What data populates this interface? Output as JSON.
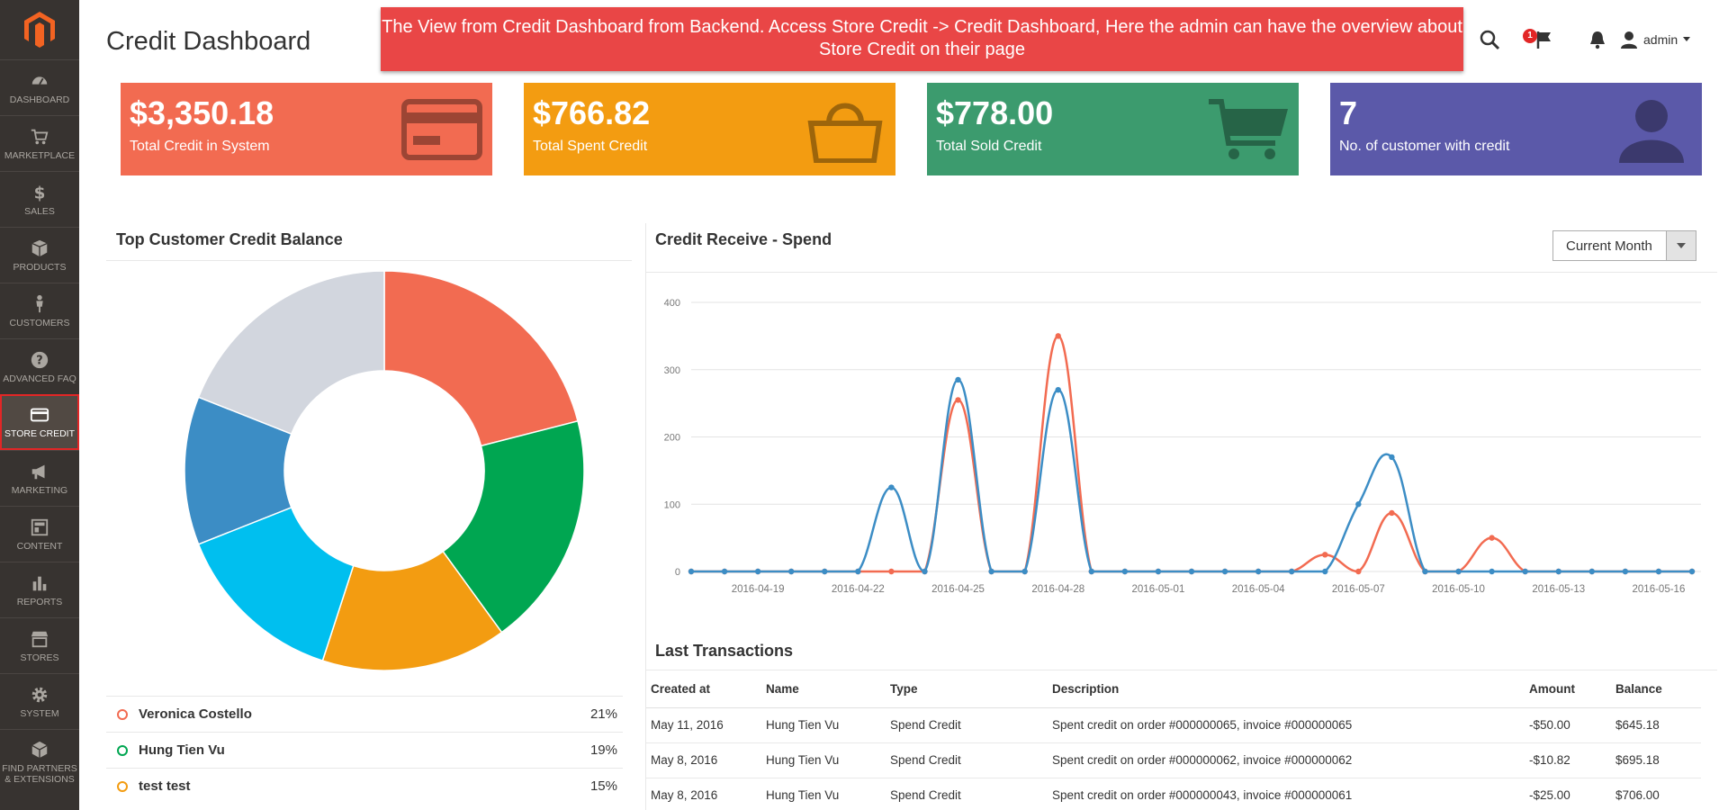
{
  "page": {
    "title": "Credit Dashboard"
  },
  "banner": {
    "text": "The View from Credit Dashboard from Backend. Access Store Credit -> Credit Dashboard, Here the admin can have the overview about Store Credit on their page"
  },
  "header": {
    "notification_count": "1",
    "user": "admin"
  },
  "sidebar": {
    "items": [
      {
        "label": "Dashboard",
        "icon": "dashboard-icon"
      },
      {
        "label": "Marketplace",
        "icon": "marketplace-icon"
      },
      {
        "label": "Sales",
        "icon": "dollar-icon"
      },
      {
        "label": "Products",
        "icon": "box-icon"
      },
      {
        "label": "Customers",
        "icon": "person-icon"
      },
      {
        "label": "Advanced FAQ",
        "icon": "question-icon"
      },
      {
        "label": "Store Credit",
        "icon": "credit-card-icon",
        "active": true
      },
      {
        "label": "Marketing",
        "icon": "megaphone-icon"
      },
      {
        "label": "Content",
        "icon": "layout-icon"
      },
      {
        "label": "Reports",
        "icon": "bar-chart-icon"
      },
      {
        "label": "Stores",
        "icon": "store-icon"
      },
      {
        "label": "System",
        "icon": "gear-icon"
      },
      {
        "label": "Find Partners & Extensions",
        "icon": "extensions-icon"
      }
    ]
  },
  "cards": [
    {
      "value": "$3,350.18",
      "label": "Total Credit in System",
      "color": "#f26b51",
      "icon": "credit-card-icon"
    },
    {
      "value": "$766.82",
      "label": "Total Spent Credit",
      "color": "#f39c11",
      "icon": "shopping-bag-icon"
    },
    {
      "value": "$778.00",
      "label": "Total Sold Credit",
      "color": "#3c9b6e",
      "icon": "shopping-cart-icon"
    },
    {
      "value": "7",
      "label": "No. of customer with credit",
      "color": "#5b59a9",
      "icon": "user-icon"
    }
  ],
  "top_customers": {
    "title": "Top Customer Credit Balance",
    "legend": [
      {
        "name": "Veronica Costello",
        "percent": "21%",
        "color": "#f26b51"
      },
      {
        "name": "Hung Tien Vu",
        "percent": "19%",
        "color": "#00a651"
      },
      {
        "name": "test test",
        "percent": "15%",
        "color": "#f39c11"
      }
    ]
  },
  "credit_chart": {
    "title": "Credit Receive - Spend",
    "period_select": "Current Month"
  },
  "transactions": {
    "title": "Last Transactions",
    "columns": [
      "Created at",
      "Name",
      "Type",
      "Description",
      "Amount",
      "Balance"
    ],
    "rows": [
      [
        "May 11, 2016",
        "Hung Tien Vu",
        "Spend Credit",
        "Spent credit on order #000000065, invoice #000000065",
        "-$50.00",
        "$645.18"
      ],
      [
        "May 8, 2016",
        "Hung Tien Vu",
        "Spend Credit",
        "Spent credit on order #000000062, invoice #000000062",
        "-$10.82",
        "$695.18"
      ],
      [
        "May 8, 2016",
        "Hung Tien Vu",
        "Spend Credit",
        "Spent credit on order #000000043, invoice #000000061",
        "-$25.00",
        "$706.00"
      ]
    ]
  },
  "chart_data": [
    {
      "type": "pie",
      "title": "Top Customer Credit Balance",
      "labels": [
        "Veronica Costello",
        "Hung Tien Vu",
        "test test",
        "",
        "",
        ""
      ],
      "values": [
        21,
        19,
        15,
        14,
        12,
        19
      ],
      "colors": [
        "#f26b51",
        "#00a651",
        "#f39c11",
        "#00bfef",
        "#3c8dc5",
        "#d2d6de"
      ]
    },
    {
      "type": "line",
      "title": "Credit Receive - Spend",
      "x": [
        "2016-04-17",
        "2016-04-18",
        "2016-04-19",
        "2016-04-20",
        "2016-04-21",
        "2016-04-22",
        "2016-04-23",
        "2016-04-24",
        "2016-04-25",
        "2016-04-26",
        "2016-04-27",
        "2016-04-28",
        "2016-04-29",
        "2016-04-30",
        "2016-05-01",
        "2016-05-02",
        "2016-05-03",
        "2016-05-04",
        "2016-05-05",
        "2016-05-06",
        "2016-05-07",
        "2016-05-08",
        "2016-05-09",
        "2016-05-10",
        "2016-05-11",
        "2016-05-12",
        "2016-05-13",
        "2016-05-14",
        "2016-05-15",
        "2016-05-16",
        "2016-05-17"
      ],
      "x_ticks": [
        "2016-04-19",
        "2016-04-22",
        "2016-04-25",
        "2016-04-28",
        "2016-05-01",
        "2016-05-04",
        "2016-05-07",
        "2016-05-10",
        "2016-05-13",
        "2016-05-16"
      ],
      "series": [
        {
          "color": "#f26b51",
          "values": [
            0,
            0,
            0,
            0,
            0,
            0,
            0,
            0,
            255,
            0,
            0,
            350,
            0,
            0,
            0,
            0,
            0,
            0,
            0,
            25,
            0,
            87,
            0,
            0,
            50,
            0,
            0,
            0,
            0,
            0,
            0
          ]
        },
        {
          "color": "#3c8dc5",
          "values": [
            0,
            0,
            0,
            0,
            0,
            0,
            125,
            0,
            285,
            0,
            0,
            270,
            0,
            0,
            0,
            0,
            0,
            0,
            0,
            0,
            100,
            170,
            0,
            0,
            0,
            0,
            0,
            0,
            0,
            0,
            0
          ]
        }
      ],
      "ylim": [
        0,
        400
      ],
      "yticks": [
        0,
        100,
        200,
        300,
        400
      ],
      "grid": true
    }
  ]
}
